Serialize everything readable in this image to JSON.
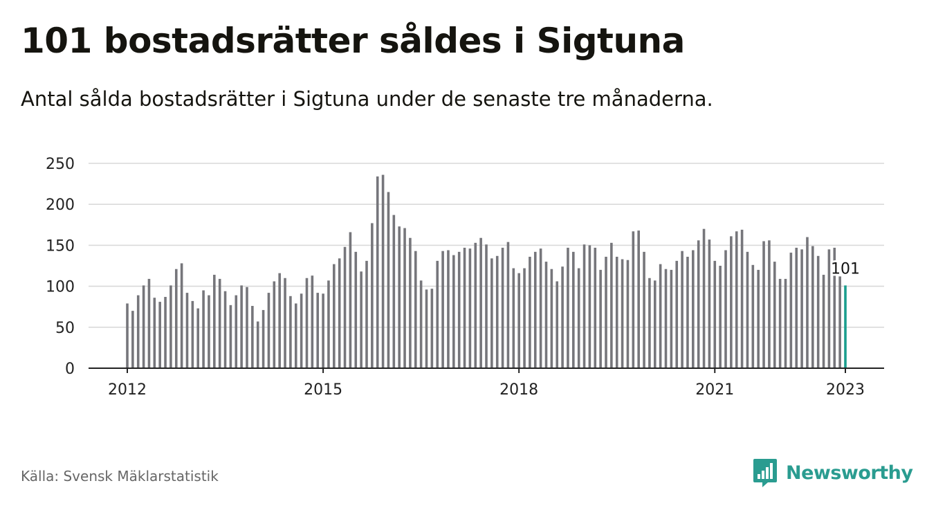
{
  "header": {
    "title": "101 bostadsrätter såldes i Sigtuna",
    "subtitle": "Antal sålda bostadsrätter i Sigtuna under de senaste tre månaderna."
  },
  "footer": {
    "source": "Källa: Svensk Mäklarstatistik",
    "brand": "Newsworthy",
    "brand_icon": "newsworthy-logo-icon"
  },
  "colors": {
    "bar": "#76767b",
    "highlight": "#1a9e8d",
    "grid": "#d9d9d9",
    "axis": "#222222",
    "brand": "#2a9c90"
  },
  "chart_data": {
    "type": "bar",
    "title": "",
    "xlabel": "",
    "ylabel": "",
    "ylim": [
      0,
      250
    ],
    "yticks": [
      0,
      50,
      100,
      150,
      200,
      250
    ],
    "xtick_labels": [
      "2012",
      "2015",
      "2018",
      "2021",
      "2023"
    ],
    "grid": true,
    "legend": "none",
    "highlight_last": true,
    "last_label": "101",
    "series": [
      {
        "values": [
          79,
          70,
          89,
          101,
          109,
          86,
          81,
          87,
          101,
          121,
          128,
          92,
          82,
          73,
          95,
          89,
          114,
          109,
          94,
          77,
          89,
          101,
          99,
          76,
          57,
          71,
          92,
          106,
          116,
          110,
          88,
          79,
          91,
          110,
          113,
          92,
          91,
          107,
          127,
          134,
          148,
          166,
          142,
          118,
          131,
          177,
          234,
          236,
          215,
          187,
          173,
          171,
          159,
          143,
          107,
          96,
          97,
          131,
          143,
          144,
          138,
          142,
          147,
          146,
          153,
          159,
          151,
          134,
          137,
          147,
          154,
          122,
          116,
          122,
          136,
          142,
          146,
          130,
          121,
          106,
          124,
          147,
          142,
          122,
          151,
          150,
          147,
          120,
          136,
          153,
          136,
          133,
          132,
          167,
          168,
          142,
          110,
          107,
          127,
          121,
          120,
          131,
          143,
          136,
          144,
          156,
          170,
          157,
          131,
          125,
          144,
          161,
          167,
          169,
          142,
          126,
          120,
          155,
          156,
          130,
          109,
          109,
          141,
          147,
          145,
          160,
          149,
          137,
          114,
          145,
          147,
          112,
          101
        ]
      }
    ]
  }
}
